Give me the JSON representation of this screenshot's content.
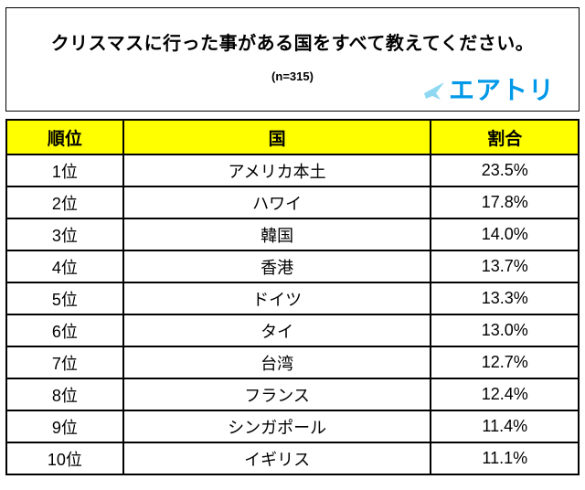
{
  "header": {
    "title": "クリスマスに行った事がある国をすべて教えてください。",
    "sample_size": "(n=315)",
    "logo_text": "エアトリ",
    "logo_color": "#0098E8",
    "logo_icon": "airtrip-mark",
    "logo_icon_color": "#8ED8F2"
  },
  "table": {
    "header_bg": "#FFFF00",
    "border_color": "#000000",
    "columns": [
      "順位",
      "国",
      "割合"
    ],
    "rows": [
      {
        "rank": "1位",
        "country": "アメリカ本土",
        "share": "23.5%"
      },
      {
        "rank": "2位",
        "country": "ハワイ",
        "share": "17.8%"
      },
      {
        "rank": "3位",
        "country": "韓国",
        "share": "14.0%"
      },
      {
        "rank": "4位",
        "country": "香港",
        "share": "13.7%"
      },
      {
        "rank": "5位",
        "country": "ドイツ",
        "share": "13.3%"
      },
      {
        "rank": "6位",
        "country": "タイ",
        "share": "13.0%"
      },
      {
        "rank": "7位",
        "country": "台湾",
        "share": "12.7%"
      },
      {
        "rank": "8位",
        "country": "フランス",
        "share": "12.4%"
      },
      {
        "rank": "9位",
        "country": "シンガポール",
        "share": "11.4%"
      },
      {
        "rank": "10位",
        "country": "イギリス",
        "share": "11.1%"
      }
    ]
  },
  "chart_data": {
    "type": "table",
    "title": "クリスマスに行った事がある国をすべて教えてください。",
    "subtitle": "(n=315)",
    "sample_n": 315,
    "columns": [
      "順位",
      "国",
      "割合"
    ],
    "categories": [
      "アメリカ本土",
      "ハワイ",
      "韓国",
      "香港",
      "ドイツ",
      "タイ",
      "台湾",
      "フランス",
      "シンガポール",
      "イギリス"
    ],
    "ranks": [
      "1位",
      "2位",
      "3位",
      "4位",
      "5位",
      "6位",
      "7位",
      "8位",
      "9位",
      "10位"
    ],
    "values_percent": [
      23.5,
      17.8,
      14.0,
      13.7,
      13.3,
      13.0,
      12.7,
      12.4,
      11.4,
      11.1
    ]
  }
}
